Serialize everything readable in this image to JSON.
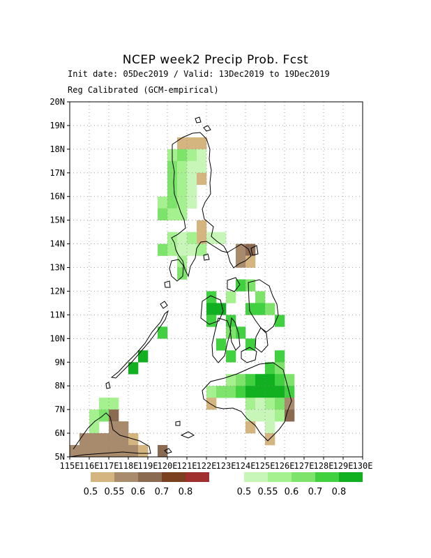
{
  "header": {
    "title": "NCEP week2 Precip Prob. Fcst",
    "subtitle_line1": "Init date: 05Dec2019 / Valid: 13Dec2019 to 19Dec2019",
    "subtitle_line2": "Reg Calibrated (GCM-empirical)"
  },
  "chart_data": {
    "type": "heatmap",
    "x_range": [
      115,
      130
    ],
    "y_range": [
      5,
      20
    ],
    "cell_size_deg": 0.5,
    "grid": true,
    "x_tick_labels": [
      "115E",
      "116E",
      "117E",
      "118E",
      "119E",
      "120E",
      "121E",
      "122E",
      "123E",
      "124E",
      "125E",
      "126E",
      "127E",
      "128E",
      "129E",
      "130E"
    ],
    "y_tick_labels": [
      "5N",
      "6N",
      "7N",
      "8N",
      "9N",
      "10N",
      "11N",
      "12N",
      "13N",
      "14N",
      "15N",
      "16N",
      "17N",
      "18N",
      "19N",
      "20N"
    ],
    "colors": {
      "dry": [
        "#d4b47f",
        "#a88a6c",
        "#8a6a50",
        "#7a4020",
        "#a03030"
      ],
      "wet": [
        "#c8f5b8",
        "#a5f08f",
        "#7de36a",
        "#40d040",
        "#10b020"
      ]
    },
    "legend_dry": {
      "labels": [
        "0.5",
        "0.55",
        "0.6",
        "0.7",
        "0.8"
      ]
    },
    "legend_wet": {
      "labels": [
        "0.5",
        "0.55",
        "0.6",
        "0.7",
        "0.8"
      ]
    },
    "cells": [
      [
        "dry",
        0,
        120.5,
        18.0
      ],
      [
        "dry",
        0,
        121.0,
        18.0
      ],
      [
        "dry",
        0,
        121.5,
        18.0
      ],
      [
        "wet",
        1,
        120.0,
        17.5
      ],
      [
        "wet",
        2,
        120.5,
        17.5
      ],
      [
        "wet",
        1,
        121.0,
        17.5
      ],
      [
        "wet",
        0,
        121.5,
        17.5
      ],
      [
        "wet",
        2,
        120.0,
        17.0
      ],
      [
        "wet",
        1,
        120.5,
        17.0
      ],
      [
        "wet",
        0,
        121.0,
        17.0
      ],
      [
        "wet",
        0,
        121.5,
        17.0
      ],
      [
        "wet",
        2,
        120.0,
        16.5
      ],
      [
        "wet",
        1,
        120.5,
        16.5
      ],
      [
        "wet",
        0,
        121.0,
        16.5
      ],
      [
        "dry",
        0,
        121.5,
        16.5
      ],
      [
        "wet",
        2,
        120.0,
        16.0
      ],
      [
        "wet",
        1,
        120.5,
        16.0
      ],
      [
        "wet",
        0,
        121.0,
        16.0
      ],
      [
        "wet",
        1,
        119.5,
        15.5
      ],
      [
        "wet",
        2,
        120.0,
        15.5
      ],
      [
        "wet",
        1,
        120.5,
        15.5
      ],
      [
        "wet",
        0,
        121.0,
        15.5
      ],
      [
        "wet",
        2,
        119.5,
        15.0
      ],
      [
        "wet",
        1,
        120.0,
        15.0
      ],
      [
        "wet",
        1,
        120.5,
        15.0
      ],
      [
        "dry",
        0,
        121.5,
        14.5
      ],
      [
        "dry",
        0,
        121.5,
        14.0
      ],
      [
        "wet",
        1,
        120.0,
        14.0
      ],
      [
        "wet",
        0,
        120.5,
        14.0
      ],
      [
        "wet",
        1,
        121.0,
        14.0
      ],
      [
        "wet",
        0,
        122.0,
        14.0
      ],
      [
        "wet",
        0,
        122.5,
        14.0
      ],
      [
        "wet",
        2,
        119.5,
        13.5
      ],
      [
        "wet",
        1,
        120.0,
        13.5
      ],
      [
        "wet",
        0,
        120.5,
        13.5
      ],
      [
        "wet",
        0,
        121.0,
        13.5
      ],
      [
        "wet",
        1,
        121.5,
        13.5
      ],
      [
        "dry",
        1,
        123.5,
        13.5
      ],
      [
        "dry",
        2,
        124.0,
        13.5
      ],
      [
        "dry",
        1,
        123.5,
        13.0
      ],
      [
        "dry",
        0,
        124.0,
        13.0
      ],
      [
        "wet",
        1,
        120.5,
        13.0
      ],
      [
        "wet",
        2,
        120.5,
        12.5
      ],
      [
        "wet",
        3,
        123.5,
        12.0
      ],
      [
        "wet",
        2,
        124.0,
        12.0
      ],
      [
        "wet",
        3,
        122.0,
        11.5
      ],
      [
        "wet",
        1,
        123.0,
        11.5
      ],
      [
        "wet",
        2,
        124.5,
        11.5
      ],
      [
        "wet",
        3,
        124.0,
        11.0
      ],
      [
        "wet",
        3,
        124.5,
        11.0
      ],
      [
        "wet",
        4,
        122.0,
        11.0
      ],
      [
        "wet",
        4,
        122.5,
        11.0
      ],
      [
        "wet",
        3,
        122.0,
        10.5
      ],
      [
        "wet",
        3,
        125.5,
        10.5
      ],
      [
        "wet",
        2,
        125.0,
        11.0
      ],
      [
        "wet",
        3,
        123.0,
        10.5
      ],
      [
        "wet",
        3,
        123.5,
        10.0
      ],
      [
        "wet",
        2,
        123.0,
        10.0
      ],
      [
        "wet",
        3,
        122.5,
        9.5
      ],
      [
        "wet",
        3,
        124.0,
        9.5
      ],
      [
        "wet",
        3,
        123.0,
        9.0
      ],
      [
        "wet",
        3,
        119.5,
        10.0
      ],
      [
        "wet",
        4,
        118.5,
        9.0
      ],
      [
        "wet",
        4,
        118.0,
        8.5
      ],
      [
        "wet",
        3,
        125.5,
        9.0
      ],
      [
        "wet",
        3,
        125.0,
        8.5
      ],
      [
        "wet",
        2,
        125.5,
        8.5
      ],
      [
        "wet",
        1,
        123.0,
        8.0
      ],
      [
        "wet",
        2,
        123.5,
        8.0
      ],
      [
        "wet",
        3,
        124.0,
        8.0
      ],
      [
        "wet",
        4,
        124.5,
        8.0
      ],
      [
        "wet",
        4,
        125.0,
        8.0
      ],
      [
        "wet",
        3,
        125.5,
        8.0
      ],
      [
        "wet",
        2,
        126.0,
        8.0
      ],
      [
        "wet",
        1,
        122.0,
        7.5
      ],
      [
        "wet",
        2,
        122.5,
        7.5
      ],
      [
        "wet",
        2,
        123.0,
        7.5
      ],
      [
        "wet",
        3,
        123.5,
        7.5
      ],
      [
        "wet",
        4,
        124.0,
        7.5
      ],
      [
        "wet",
        4,
        124.5,
        7.5
      ],
      [
        "wet",
        4,
        125.0,
        7.5
      ],
      [
        "wet",
        4,
        125.5,
        7.5
      ],
      [
        "wet",
        3,
        126.0,
        7.5
      ],
      [
        "dry",
        0,
        122.0,
        7.0
      ],
      [
        "wet",
        1,
        124.0,
        7.0
      ],
      [
        "wet",
        0,
        124.5,
        7.0
      ],
      [
        "wet",
        1,
        125.0,
        7.0
      ],
      [
        "wet",
        2,
        125.5,
        7.0
      ],
      [
        "dry",
        1,
        126.0,
        7.0
      ],
      [
        "wet",
        0,
        124.0,
        6.5
      ],
      [
        "wet",
        0,
        124.5,
        6.5
      ],
      [
        "wet",
        0,
        125.0,
        6.5
      ],
      [
        "wet",
        1,
        125.5,
        6.5
      ],
      [
        "dry",
        2,
        126.0,
        6.5
      ],
      [
        "dry",
        0,
        124.0,
        6.0
      ],
      [
        "wet",
        0,
        125.0,
        6.0
      ],
      [
        "dry",
        0,
        125.0,
        5.5
      ],
      [
        "wet",
        1,
        116.5,
        7.0
      ],
      [
        "wet",
        1,
        117.0,
        7.0
      ],
      [
        "wet",
        1,
        116.0,
        6.5
      ],
      [
        "wet",
        2,
        116.5,
        6.5
      ],
      [
        "dry",
        2,
        117.0,
        6.5
      ],
      [
        "wet",
        1,
        116.0,
        6.0
      ],
      [
        "dry",
        1,
        117.0,
        6.0
      ],
      [
        "dry",
        1,
        117.5,
        6.0
      ],
      [
        "dry",
        1,
        115.5,
        5.5
      ],
      [
        "dry",
        1,
        116.0,
        5.5
      ],
      [
        "dry",
        1,
        116.5,
        5.5
      ],
      [
        "dry",
        1,
        117.0,
        5.5
      ],
      [
        "dry",
        1,
        117.5,
        5.5
      ],
      [
        "dry",
        0,
        118.0,
        5.5
      ],
      [
        "dry",
        1,
        115.0,
        5.0
      ],
      [
        "dry",
        1,
        115.5,
        5.0
      ],
      [
        "dry",
        1,
        116.0,
        5.0
      ],
      [
        "dry",
        1,
        116.5,
        5.0
      ],
      [
        "dry",
        1,
        117.0,
        5.0
      ],
      [
        "dry",
        1,
        117.5,
        5.0
      ],
      [
        "dry",
        1,
        118.0,
        5.0
      ],
      [
        "dry",
        0,
        118.5,
        5.0
      ],
      [
        "dry",
        2,
        119.5,
        5.0
      ]
    ]
  }
}
